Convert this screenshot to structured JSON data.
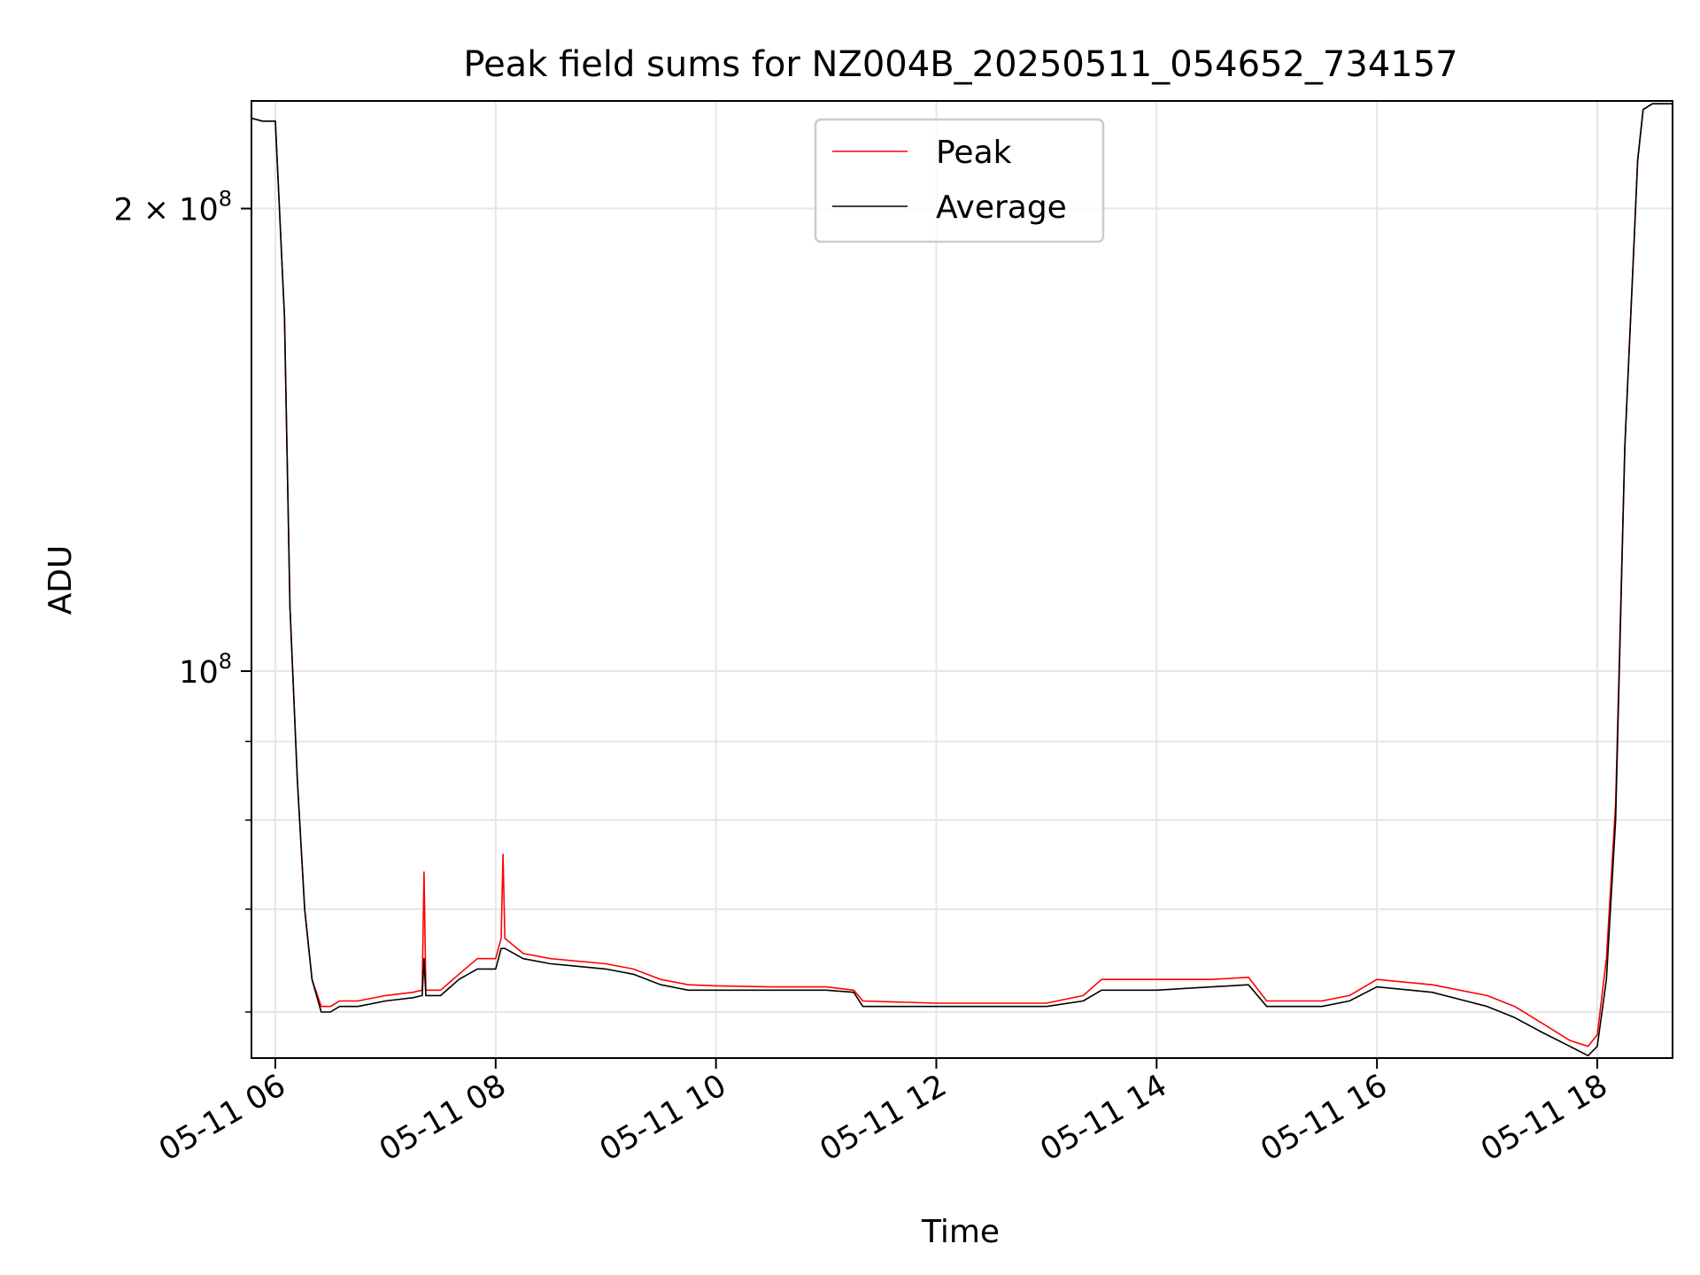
{
  "chart_data": {
    "type": "line",
    "title": "Peak field sums for NZ004B_20250511_054652_734157",
    "xlabel": "Time",
    "ylabel": "ADU",
    "y_scale": "log",
    "ylim": [
      56000000,
      235000000
    ],
    "xlim": [
      "2025-05-11 05:47",
      "2025-05-11 18:41"
    ],
    "x_ticks": [
      "2025-05-11 06:00",
      "2025-05-11 08:00",
      "2025-05-11 10:00",
      "2025-05-11 12:00",
      "2025-05-11 14:00",
      "2025-05-11 16:00",
      "2025-05-11 18:00"
    ],
    "x_tick_labels": [
      "05-11 06",
      "05-11 08",
      "05-11 10",
      "05-11 12",
      "05-11 14",
      "05-11 16",
      "05-11 18"
    ],
    "y_ticks": [
      200000000,
      100000000
    ],
    "y_tick_labels": [
      {
        "base": "2 × 10",
        "exp": "8"
      },
      {
        "base": "10",
        "exp": "8"
      }
    ],
    "grid": true,
    "legend": "top-center",
    "series": [
      {
        "name": "Peak",
        "color": "#ff0000",
        "x": [
          "2025-05-11 05:47",
          "2025-05-11 05:53",
          "2025-05-11 06:00",
          "2025-05-11 06:05",
          "2025-05-11 06:08",
          "2025-05-11 06:12",
          "2025-05-11 06:16",
          "2025-05-11 06:20",
          "2025-05-11 06:25",
          "2025-05-11 06:30",
          "2025-05-11 06:35",
          "2025-05-11 06:45",
          "2025-05-11 07:00",
          "2025-05-11 07:15",
          "2025-05-11 07:20",
          "2025-05-11 07:21",
          "2025-05-11 07:22",
          "2025-05-11 07:30",
          "2025-05-11 07:40",
          "2025-05-11 07:50",
          "2025-05-11 08:00",
          "2025-05-11 08:03",
          "2025-05-11 08:04",
          "2025-05-11 08:05",
          "2025-05-11 08:15",
          "2025-05-11 08:30",
          "2025-05-11 09:00",
          "2025-05-11 09:15",
          "2025-05-11 09:30",
          "2025-05-11 09:45",
          "2025-05-11 10:00",
          "2025-05-11 10:30",
          "2025-05-11 11:00",
          "2025-05-11 11:15",
          "2025-05-11 11:20",
          "2025-05-11 12:00",
          "2025-05-11 12:30",
          "2025-05-11 13:00",
          "2025-05-11 13:20",
          "2025-05-11 13:30",
          "2025-05-11 14:00",
          "2025-05-11 14:30",
          "2025-05-11 14:50",
          "2025-05-11 15:00",
          "2025-05-11 15:30",
          "2025-05-11 15:45",
          "2025-05-11 16:00",
          "2025-05-11 16:30",
          "2025-05-11 17:00",
          "2025-05-11 17:15",
          "2025-05-11 17:30",
          "2025-05-11 17:45",
          "2025-05-11 17:55",
          "2025-05-11 18:00",
          "2025-05-11 18:05",
          "2025-05-11 18:10",
          "2025-05-11 18:15",
          "2025-05-11 18:20",
          "2025-05-11 18:22",
          "2025-05-11 18:25",
          "2025-05-11 18:30",
          "2025-05-11 18:41"
        ],
        "y": [
          229000000,
          228000000,
          228000000,
          170000000,
          110000000,
          85000000,
          70000000,
          63000000,
          60500000,
          60500000,
          61000000,
          61000000,
          61500000,
          61800000,
          62000000,
          74000000,
          62000000,
          62000000,
          63500000,
          65000000,
          65000000,
          67000000,
          76000000,
          67000000,
          65500000,
          65000000,
          64500000,
          64000000,
          63000000,
          62500000,
          62400000,
          62300000,
          62300000,
          62000000,
          61000000,
          60800000,
          60800000,
          60800000,
          61500000,
          63000000,
          63000000,
          63000000,
          63200000,
          61000000,
          61000000,
          61500000,
          63000000,
          62500000,
          61500000,
          60500000,
          59000000,
          57500000,
          57000000,
          58000000,
          65000000,
          82000000,
          140000000,
          190000000,
          215000000,
          232000000,
          234000000,
          234000000
        ]
      },
      {
        "name": "Average",
        "color": "#000000",
        "x": [
          "2025-05-11 05:47",
          "2025-05-11 05:53",
          "2025-05-11 06:00",
          "2025-05-11 06:05",
          "2025-05-11 06:08",
          "2025-05-11 06:12",
          "2025-05-11 06:16",
          "2025-05-11 06:20",
          "2025-05-11 06:25",
          "2025-05-11 06:30",
          "2025-05-11 06:35",
          "2025-05-11 06:45",
          "2025-05-11 07:00",
          "2025-05-11 07:15",
          "2025-05-11 07:20",
          "2025-05-11 07:21",
          "2025-05-11 07:22",
          "2025-05-11 07:30",
          "2025-05-11 07:40",
          "2025-05-11 07:50",
          "2025-05-11 08:00",
          "2025-05-11 08:03",
          "2025-05-11 08:04",
          "2025-05-11 08:05",
          "2025-05-11 08:15",
          "2025-05-11 08:30",
          "2025-05-11 09:00",
          "2025-05-11 09:15",
          "2025-05-11 09:30",
          "2025-05-11 09:45",
          "2025-05-11 10:00",
          "2025-05-11 10:30",
          "2025-05-11 11:00",
          "2025-05-11 11:15",
          "2025-05-11 11:20",
          "2025-05-11 12:00",
          "2025-05-11 12:30",
          "2025-05-11 13:00",
          "2025-05-11 13:20",
          "2025-05-11 13:30",
          "2025-05-11 14:00",
          "2025-05-11 14:30",
          "2025-05-11 14:50",
          "2025-05-11 15:00",
          "2025-05-11 15:30",
          "2025-05-11 15:45",
          "2025-05-11 16:00",
          "2025-05-11 16:30",
          "2025-05-11 17:00",
          "2025-05-11 17:15",
          "2025-05-11 17:30",
          "2025-05-11 17:45",
          "2025-05-11 17:55",
          "2025-05-11 18:00",
          "2025-05-11 18:05",
          "2025-05-11 18:10",
          "2025-05-11 18:15",
          "2025-05-11 18:20",
          "2025-05-11 18:22",
          "2025-05-11 18:25",
          "2025-05-11 18:30",
          "2025-05-11 18:41"
        ],
        "y": [
          229000000,
          228000000,
          228000000,
          170000000,
          110000000,
          85000000,
          70000000,
          63000000,
          60000000,
          60000000,
          60500000,
          60500000,
          61000000,
          61300000,
          61500000,
          65000000,
          61500000,
          61500000,
          63000000,
          64000000,
          64000000,
          66000000,
          66000000,
          66000000,
          65000000,
          64500000,
          64000000,
          63500000,
          62500000,
          62000000,
          62000000,
          62000000,
          62000000,
          61800000,
          60500000,
          60500000,
          60500000,
          60500000,
          61000000,
          62000000,
          62000000,
          62300000,
          62500000,
          60500000,
          60500000,
          61000000,
          62300000,
          61800000,
          60500000,
          59500000,
          58200000,
          57000000,
          56200000,
          57000000,
          63000000,
          80000000,
          140000000,
          190000000,
          215000000,
          232000000,
          234000000,
          234000000
        ]
      }
    ]
  }
}
